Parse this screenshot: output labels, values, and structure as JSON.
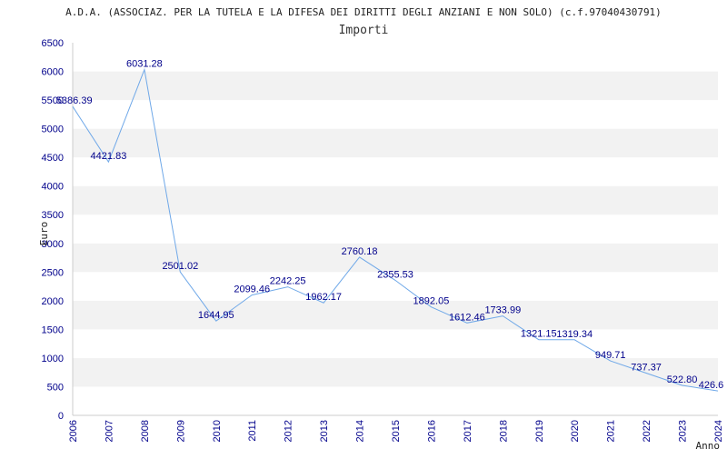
{
  "title": "A.D.A. (ASSOCIAZ. PER LA TUTELA E LA DIFESA DEI DIRITTI DEGLI ANZIANI E NON SOLO) (c.f.97040430791)",
  "subtitle": "Importi",
  "colors": {
    "line": "#6fa8e8",
    "band": "#f2f2f2",
    "tick_text": "#00008b",
    "axis": "#cccccc"
  },
  "chart_data": {
    "type": "line",
    "title": "A.D.A. (ASSOCIAZ. PER LA TUTELA E LA DIFESA DEI DIRITTI DEGLI ANZIANI E NON SOLO) (c.f.97040430791)",
    "subtitle": "Importi",
    "xlabel": "Anno",
    "ylabel": "Euro",
    "x": [
      "2006",
      "2007",
      "2008",
      "2009",
      "2010",
      "2011",
      "2012",
      "2013",
      "2014",
      "2015",
      "2016",
      "2017",
      "2018",
      "2019",
      "2020",
      "2021",
      "2022",
      "2023",
      "2024"
    ],
    "values": [
      5386.39,
      4421.83,
      6031.28,
      2501.02,
      1644.95,
      2099.46,
      2242.25,
      1962.17,
      2760.18,
      2355.53,
      1892.05,
      1612.46,
      1733.99,
      1321.15,
      1319.34,
      949.71,
      737.37,
      522.8,
      426.6
    ],
    "data_labels": [
      "5386.39",
      "4421.83",
      "6031.28",
      "2501.02",
      "1644.95",
      "2099.46",
      "2242.25",
      "1962.17",
      "2760.18",
      "2355.53",
      "1892.05",
      "1612.46",
      "1733.99",
      "1321.15",
      "1319.34",
      "949.71",
      "737.37",
      "522.80",
      "426.6"
    ],
    "yticks": [
      "0",
      "500",
      "1000",
      "1500",
      "2000",
      "2500",
      "3000",
      "3500",
      "4000",
      "4500",
      "5000",
      "5500",
      "6000",
      "6500"
    ],
    "ylim": [
      0,
      6500
    ],
    "grid": "alternating horizontal bands"
  }
}
